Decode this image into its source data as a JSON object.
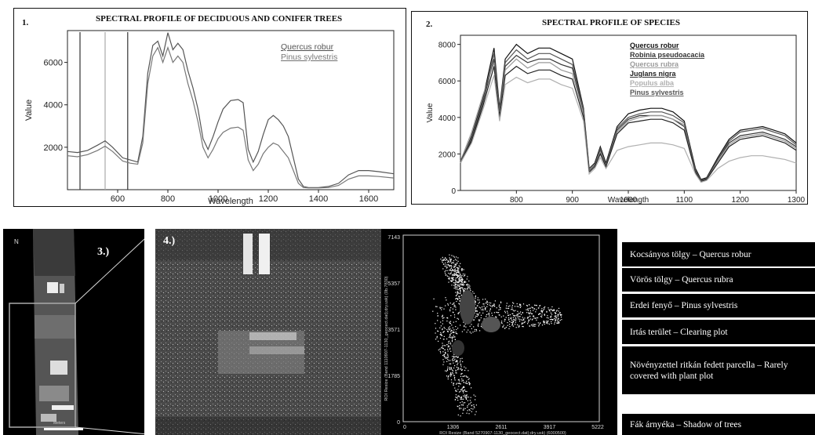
{
  "panel1": {
    "number": "1.",
    "chart_data": {
      "type": "line",
      "title": "SPECTRAL PROFILE OF DECIDUOUS AND CONIFER TREES",
      "xlabel": "Wavelength",
      "ylabel": "Value",
      "xlim": [
        400,
        1700
      ],
      "ylim": [
        0,
        7500
      ],
      "xticks": [
        600,
        800,
        1000,
        1200,
        1400,
        1600
      ],
      "yticks": [
        2000,
        4000,
        6000
      ],
      "vertical_lines": [
        450,
        550,
        640
      ],
      "series": [
        {
          "name": "Quercus robur",
          "x": [
            400,
            440,
            480,
            520,
            550,
            580,
            620,
            650,
            680,
            700,
            720,
            740,
            760,
            780,
            800,
            820,
            840,
            860,
            880,
            900,
            920,
            940,
            960,
            980,
            1000,
            1020,
            1050,
            1080,
            1100,
            1120,
            1140,
            1160,
            1180,
            1200,
            1220,
            1240,
            1260,
            1280,
            1300,
            1320,
            1340,
            1360,
            1400,
            1440,
            1480,
            1520,
            1560,
            1600,
            1640,
            1700
          ],
          "y": [
            1800,
            1750,
            1850,
            2100,
            2300,
            2000,
            1500,
            1400,
            1300,
            2500,
            5500,
            6800,
            7000,
            6300,
            7400,
            6600,
            6900,
            6600,
            5600,
            4800,
            3800,
            2400,
            1900,
            2500,
            3200,
            3800,
            4200,
            4250,
            4100,
            1900,
            1300,
            1800,
            2600,
            3300,
            3500,
            3300,
            3000,
            2500,
            1500,
            500,
            150,
            100,
            100,
            150,
            300,
            700,
            900,
            900,
            850,
            750
          ]
        },
        {
          "name": "Pinus sylvestris",
          "x": [
            400,
            440,
            480,
            520,
            550,
            580,
            620,
            650,
            680,
            700,
            720,
            740,
            760,
            780,
            800,
            820,
            840,
            860,
            880,
            900,
            920,
            940,
            960,
            980,
            1000,
            1020,
            1050,
            1080,
            1100,
            1120,
            1140,
            1160,
            1180,
            1200,
            1220,
            1240,
            1260,
            1280,
            1300,
            1320,
            1340,
            1360,
            1400,
            1440,
            1480,
            1520,
            1560,
            1600,
            1640,
            1700
          ],
          "y": [
            1600,
            1550,
            1650,
            1850,
            2050,
            1800,
            1350,
            1250,
            1200,
            2200,
            5000,
            6300,
            6700,
            6000,
            6700,
            6000,
            6300,
            6000,
            5000,
            4200,
            3200,
            2000,
            1500,
            1900,
            2400,
            2700,
            2900,
            2950,
            2800,
            1400,
            900,
            1200,
            1700,
            2000,
            2200,
            2100,
            1800,
            1500,
            900,
            300,
            100,
            80,
            80,
            100,
            200,
            500,
            650,
            650,
            620,
            550
          ]
        }
      ]
    }
  },
  "panel2": {
    "number": "2.",
    "chart_data": {
      "type": "line",
      "title": "SPECTRAL PROFILE OF SPECIES",
      "xlabel": "Wavelength",
      "ylabel": "Value",
      "xlim": [
        700,
        1300
      ],
      "ylim": [
        0,
        8500
      ],
      "xticks": [
        800,
        900,
        1000,
        1100,
        1200,
        1300
      ],
      "yticks": [
        0,
        2000,
        4000,
        6000,
        8000
      ],
      "series": [
        {
          "name": "Quercus robur",
          "color": "#111111",
          "x": [
            700,
            720,
            740,
            760,
            770,
            780,
            800,
            820,
            840,
            860,
            880,
            900,
            920,
            930,
            940,
            950,
            960,
            980,
            1000,
            1020,
            1040,
            1060,
            1080,
            1100,
            1120,
            1130,
            1140,
            1160,
            1180,
            1200,
            1220,
            1240,
            1260,
            1280,
            1300
          ],
          "y": [
            1500,
            3000,
            5000,
            7800,
            4500,
            7200,
            8000,
            7500,
            7800,
            7800,
            7500,
            7200,
            4500,
            1200,
            1500,
            2400,
            1500,
            3500,
            4200,
            4400,
            4500,
            4500,
            4300,
            3800,
            1200,
            600,
            700,
            1800,
            2800,
            3300,
            3400,
            3500,
            3300,
            3100,
            2600
          ]
        },
        {
          "name": "Robinia pseudoacacia",
          "color": "#333333",
          "x": [
            700,
            720,
            740,
            760,
            770,
            780,
            800,
            820,
            840,
            860,
            880,
            900,
            920,
            930,
            940,
            950,
            960,
            980,
            1000,
            1020,
            1040,
            1060,
            1080,
            1100,
            1120,
            1130,
            1140,
            1160,
            1180,
            1200,
            1220,
            1240,
            1260,
            1280,
            1300
          ],
          "y": [
            1500,
            2800,
            4800,
            7200,
            4200,
            6800,
            7400,
            7000,
            7200,
            7200,
            6900,
            6700,
            4300,
            1100,
            1400,
            2200,
            1400,
            3300,
            3900,
            4100,
            4100,
            4100,
            3900,
            3500,
            1100,
            550,
            650,
            1700,
            2600,
            3000,
            3100,
            3200,
            3000,
            2800,
            2400
          ]
        },
        {
          "name": "Quercus rubra",
          "color": "#9a9a9a",
          "x": [
            700,
            720,
            740,
            760,
            770,
            780,
            800,
            820,
            840,
            860,
            880,
            900,
            920,
            930,
            940,
            950,
            960,
            980,
            1000,
            1020,
            1040,
            1060,
            1080,
            1100,
            1120,
            1130,
            1140,
            1160,
            1180,
            1200,
            1220,
            1240,
            1260,
            1280,
            1300
          ],
          "y": [
            1600,
            3200,
            5200,
            7000,
            4300,
            6600,
            7200,
            6700,
            7000,
            7000,
            6600,
            6400,
            4200,
            1000,
            1300,
            2100,
            1300,
            3200,
            3800,
            4000,
            4100,
            4100,
            3900,
            3600,
            1000,
            500,
            600,
            1600,
            2500,
            2900,
            3000,
            3100,
            2900,
            2700,
            2300
          ]
        },
        {
          "name": "Juglans nigra",
          "color": "#222222",
          "x": [
            700,
            720,
            740,
            760,
            770,
            780,
            800,
            820,
            840,
            860,
            880,
            900,
            920,
            930,
            940,
            950,
            960,
            980,
            1000,
            1020,
            1040,
            1060,
            1080,
            1100,
            1120,
            1130,
            1140,
            1160,
            1180,
            1200,
            1220,
            1240,
            1260,
            1280,
            1300
          ],
          "y": [
            1500,
            2700,
            4600,
            6800,
            4000,
            6300,
            6800,
            6400,
            6600,
            6600,
            6300,
            6100,
            4000,
            1000,
            1300,
            2000,
            1300,
            3100,
            3700,
            3800,
            3900,
            3900,
            3700,
            3300,
            1000,
            500,
            600,
            1500,
            2400,
            2800,
            2900,
            3000,
            2800,
            2600,
            2200
          ]
        },
        {
          "name": "Populus alba",
          "color": "#b0b0b0",
          "x": [
            700,
            720,
            740,
            760,
            770,
            780,
            800,
            820,
            840,
            860,
            880,
            900,
            920,
            930,
            940,
            950,
            960,
            980,
            1000,
            1020,
            1040,
            1060,
            1080,
            1100,
            1120,
            1130,
            1140,
            1160,
            1180,
            1200,
            1220,
            1240,
            1260,
            1280,
            1300
          ],
          "y": [
            1500,
            2600,
            4400,
            6300,
            3800,
            5800,
            6200,
            5900,
            6100,
            6100,
            5800,
            5600,
            3800,
            900,
            1200,
            1800,
            1200,
            2200,
            2400,
            2500,
            2600,
            2600,
            2500,
            2300,
            900,
            450,
            550,
            1200,
            1600,
            1800,
            1900,
            1900,
            1800,
            1700,
            1500
          ]
        },
        {
          "name": "Pinus sylvestris",
          "color": "#555555",
          "x": [
            700,
            720,
            740,
            760,
            770,
            780,
            800,
            820,
            840,
            860,
            880,
            900,
            920,
            930,
            940,
            950,
            960,
            980,
            1000,
            1020,
            1040,
            1060,
            1080,
            1100,
            1120,
            1130,
            1140,
            1160,
            1180,
            1200,
            1220,
            1240,
            1260,
            1280,
            1300
          ],
          "y": [
            1600,
            2900,
            4900,
            7500,
            4400,
            7000,
            7700,
            7200,
            7500,
            7500,
            7200,
            6900,
            4400,
            1100,
            1400,
            2300,
            1400,
            3400,
            4000,
            4200,
            4300,
            4300,
            4100,
            3700,
            1100,
            550,
            650,
            1700,
            2700,
            3200,
            3300,
            3400,
            3200,
            3000,
            2500
          ]
        }
      ]
    }
  },
  "images": {
    "strip": {
      "label": "3.)",
      "north": "N",
      "scale": "Meters"
    },
    "zoom": {
      "label": "4.)"
    }
  },
  "scatter": {
    "yticks": [
      "7143",
      "5357",
      "3571",
      "1785",
      "0"
    ],
    "xticks": [
      "0",
      "1306",
      "2611",
      "3917",
      "5222"
    ],
    "ylabel": "ROI Resize (Band 1110907-1130_geocect.dat);dry.usk) (0b.7830)",
    "xlabel": "ROI Resize (Band 5270907-1130_geocect.dat);dry.usk) (6000500)"
  },
  "legend": {
    "items": [
      "Kocsányos tölgy – Quercus robur",
      "Vörös tölgy – Quercus rubra",
      "Erdei fenyő – Pinus sylvestris",
      "Irtás terület – Clearing plot",
      "Növényzettel ritkán fedett parcella – Rarely covered with plant plot",
      "Fák árnyéka – Shadow of trees"
    ]
  }
}
